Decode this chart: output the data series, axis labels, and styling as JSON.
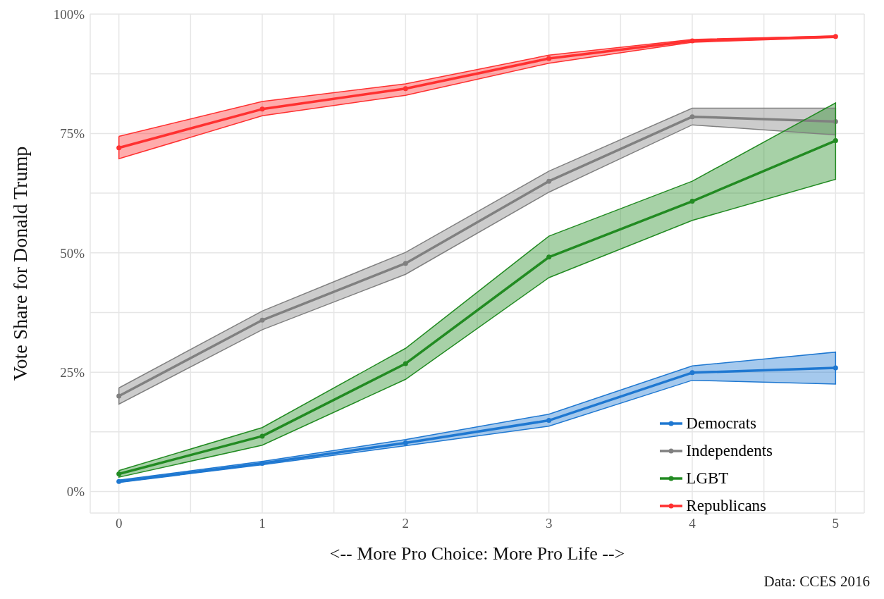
{
  "chart_data": {
    "type": "line",
    "xlabel": "<-- More Pro Choice: More Pro Life -->",
    "ylabel": "Vote Share for Donald Trump",
    "annotations": [
      "Data: CCES 2016"
    ],
    "x": [
      0,
      1,
      2,
      3,
      4,
      5
    ],
    "series": [
      {
        "name": "Democrats",
        "color": "#1f78d1",
        "values": [
          2.1,
          5.9,
          10.2,
          14.9,
          24.9,
          25.9
        ],
        "lower": [
          1.9,
          5.6,
          9.6,
          13.7,
          23.3,
          22.5
        ],
        "upper": [
          2.4,
          6.3,
          10.9,
          16.2,
          26.3,
          29.2
        ]
      },
      {
        "name": "Independents",
        "color": "#808080",
        "values": [
          20.0,
          35.9,
          47.8,
          65.0,
          78.5,
          77.5
        ],
        "lower": [
          18.3,
          33.9,
          45.5,
          62.7,
          76.8,
          74.7
        ],
        "upper": [
          21.7,
          37.8,
          50.1,
          67.1,
          80.3,
          80.3
        ]
      },
      {
        "name": "LGBT",
        "color": "#228b22",
        "values": [
          3.7,
          11.6,
          26.8,
          49.1,
          60.8,
          73.5
        ],
        "lower": [
          3.0,
          9.7,
          23.5,
          44.8,
          56.8,
          65.4
        ],
        "upper": [
          4.4,
          13.4,
          30.0,
          53.5,
          65.0,
          81.4
        ]
      },
      {
        "name": "Republicans",
        "color": "#ff3030",
        "values": [
          72.0,
          80.1,
          84.4,
          90.7,
          94.4,
          95.3
        ],
        "lower": [
          69.7,
          78.7,
          83.0,
          89.7,
          94.1,
          95.1
        ],
        "upper": [
          74.4,
          81.7,
          85.4,
          91.4,
          94.7,
          95.4
        ]
      }
    ],
    "xlim": [
      -0.2,
      5.2
    ],
    "xticks": [
      0,
      {
        "value": 0.5,
        "label": null
      },
      1,
      {
        "value": 1.5,
        "label": null
      },
      2,
      {
        "value": 2.5,
        "label": null
      },
      3,
      {
        "value": 3.5,
        "label": null
      },
      4,
      {
        "value": 4.5,
        "label": null
      },
      5
    ],
    "ylim": [
      -4.5,
      100
    ],
    "yticks": [
      {
        "value": 0,
        "label": "0%"
      },
      {
        "value": 12.5,
        "label": null
      },
      {
        "value": 25,
        "label": "25%"
      },
      {
        "value": 37.5,
        "label": null
      },
      {
        "value": 50,
        "label": "50%"
      },
      {
        "value": 62.5,
        "label": null
      },
      {
        "value": 75,
        "label": "75%"
      },
      {
        "value": 87.5,
        "label": null
      },
      {
        "value": 100,
        "label": "100%"
      }
    ],
    "grid": true,
    "legend": "bottom right",
    "marker": "circle",
    "line_style": "solid"
  }
}
